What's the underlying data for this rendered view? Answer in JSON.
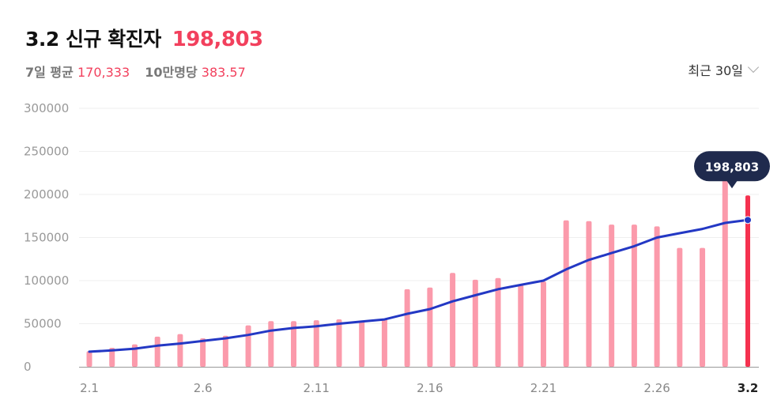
{
  "header": {
    "title": "3.2 신규 확진자",
    "title_value": "198,803",
    "avg_label": "7일 평균",
    "avg_value": "170,333",
    "per100k_label": "10만명당",
    "per100k_value": "383.57"
  },
  "period_selector": {
    "label": "최근 30일",
    "icon": "chevron-down-icon"
  },
  "colors": {
    "bar": "#fb9aab",
    "bar_highlight": "#f5314f",
    "line": "#2338c4",
    "tooltip_bg": "#1f2a4d",
    "accent": "#f2405d"
  },
  "chart_data": {
    "type": "bar",
    "categories": [
      "2.1",
      "2.2",
      "2.3",
      "2.4",
      "2.5",
      "2.6",
      "2.7",
      "2.8",
      "2.9",
      "2.10",
      "2.11",
      "2.12",
      "2.13",
      "2.14",
      "2.15",
      "2.16",
      "2.17",
      "2.18",
      "2.19",
      "2.20",
      "2.21",
      "2.22",
      "2.23",
      "2.24",
      "2.25",
      "2.26",
      "2.27",
      "2.28",
      "3.1",
      "3.2"
    ],
    "x_tick_labels": [
      "2.1",
      "2.6",
      "2.11",
      "2.16",
      "2.21",
      "2.26",
      "3.2"
    ],
    "series": [
      {
        "type": "bar",
        "values": [
          18000,
          22000,
          26000,
          35000,
          38000,
          33000,
          36000,
          48000,
          53000,
          53000,
          54000,
          55000,
          53000,
          56000,
          90000,
          92000,
          109000,
          101000,
          103000,
          95000,
          99000,
          170000,
          169000,
          165000,
          165000,
          163000,
          138000,
          138000,
          219000,
          198803
        ]
      },
      {
        "type": "line",
        "values": [
          17500,
          19000,
          21000,
          24500,
          27000,
          30000,
          33000,
          37000,
          42000,
          45000,
          47000,
          50000,
          52500,
          55000,
          61500,
          67000,
          76000,
          83000,
          90000,
          95000,
          100000,
          113000,
          124000,
          132000,
          140000,
          150000,
          155000,
          160000,
          167000,
          170333
        ]
      }
    ],
    "y_ticks": [
      0,
      50000,
      100000,
      150000,
      200000,
      250000,
      300000
    ],
    "ylim": [
      0,
      300000
    ],
    "grid": true,
    "tooltip": {
      "label": "198,803"
    }
  }
}
